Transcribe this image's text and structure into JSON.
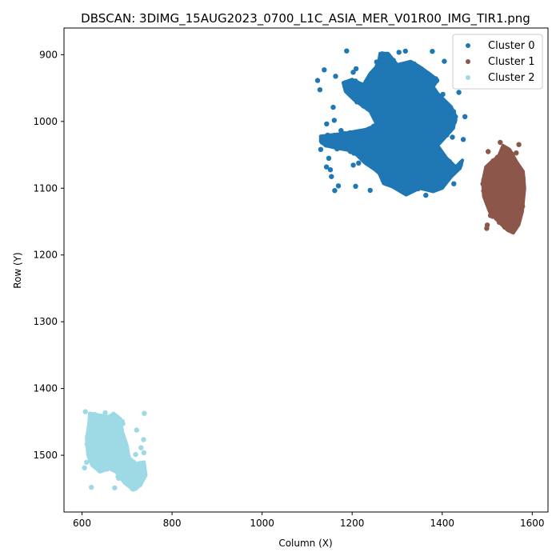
{
  "chart_data": {
    "type": "scatter",
    "title": "DBSCAN: 3DIMG_15AUG2023_0700_L1C_ASIA_MER_V01R00_IMG_TIR1.png",
    "xlabel": "Column (X)",
    "ylabel": "Row (Y)",
    "xlim": [
      560,
      1635
    ],
    "ylim": [
      1585,
      860
    ],
    "y_inverted": true,
    "x_ticks": [
      600,
      800,
      1000,
      1200,
      1400,
      1600
    ],
    "y_ticks": [
      900,
      1000,
      1100,
      1200,
      1300,
      1400,
      1500
    ],
    "grid": false,
    "legend_position": "top-right",
    "series": [
      {
        "name": "Cluster 0",
        "color": "#1f77b4",
        "region_outline": [
          [
            1130,
            1022
          ],
          [
            1180,
            1018
          ],
          [
            1230,
            1012
          ],
          [
            1255,
            1005
          ],
          [
            1240,
            985
          ],
          [
            1205,
            968
          ],
          [
            1185,
            955
          ],
          [
            1180,
            942
          ],
          [
            1200,
            937
          ],
          [
            1225,
            945
          ],
          [
            1240,
            928
          ],
          [
            1258,
            915
          ],
          [
            1262,
            898
          ],
          [
            1280,
            898
          ],
          [
            1300,
            915
          ],
          [
            1330,
            910
          ],
          [
            1350,
            918
          ],
          [
            1375,
            930
          ],
          [
            1390,
            938
          ],
          [
            1380,
            948
          ],
          [
            1390,
            958
          ],
          [
            1420,
            978
          ],
          [
            1430,
            992
          ],
          [
            1425,
            1010
          ],
          [
            1405,
            1025
          ],
          [
            1390,
            1036
          ],
          [
            1410,
            1055
          ],
          [
            1430,
            1068
          ],
          [
            1445,
            1058
          ],
          [
            1440,
            1070
          ],
          [
            1420,
            1083
          ],
          [
            1400,
            1100
          ],
          [
            1380,
            1105
          ],
          [
            1350,
            1100
          ],
          [
            1320,
            1110
          ],
          [
            1290,
            1098
          ],
          [
            1270,
            1093
          ],
          [
            1260,
            1078
          ],
          [
            1250,
            1072
          ],
          [
            1228,
            1062
          ],
          [
            1210,
            1050
          ],
          [
            1190,
            1043
          ],
          [
            1165,
            1040
          ],
          [
            1140,
            1036
          ],
          [
            1130,
            1030
          ]
        ]
      },
      {
        "name": "Cluster 1",
        "color": "#8c564b",
        "region_outline": [
          [
            1490,
            1090
          ],
          [
            1497,
            1068
          ],
          [
            1510,
            1060
          ],
          [
            1525,
            1052
          ],
          [
            1535,
            1036
          ],
          [
            1550,
            1042
          ],
          [
            1565,
            1060
          ],
          [
            1580,
            1075
          ],
          [
            1583,
            1100
          ],
          [
            1578,
            1135
          ],
          [
            1570,
            1155
          ],
          [
            1558,
            1167
          ],
          [
            1545,
            1163
          ],
          [
            1525,
            1150
          ],
          [
            1505,
            1135
          ],
          [
            1492,
            1112
          ]
        ]
      },
      {
        "name": "Cluster 2",
        "color": "#9edae5",
        "region_outline": [
          [
            610,
            1475
          ],
          [
            615,
            1455
          ],
          [
            617,
            1437
          ],
          [
            640,
            1440
          ],
          [
            660,
            1442
          ],
          [
            670,
            1437
          ],
          [
            685,
            1445
          ],
          [
            690,
            1465
          ],
          [
            700,
            1485
          ],
          [
            705,
            1505
          ],
          [
            720,
            1512
          ],
          [
            738,
            1510
          ],
          [
            742,
            1530
          ],
          [
            730,
            1545
          ],
          [
            715,
            1552
          ],
          [
            695,
            1542
          ],
          [
            675,
            1525
          ],
          [
            660,
            1520
          ],
          [
            640,
            1525
          ],
          [
            622,
            1515
          ],
          [
            613,
            1500
          ]
        ]
      }
    ]
  }
}
